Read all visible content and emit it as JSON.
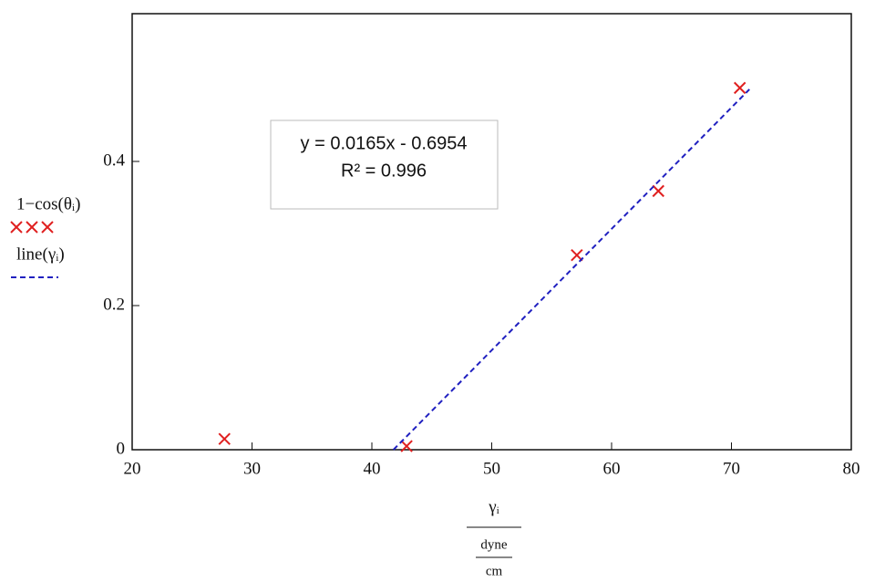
{
  "chart_data": {
    "type": "scatter",
    "xlabel": "γᵢ",
    "xlabel_unit_num": "dyne",
    "xlabel_unit_den": "cm",
    "annotation": [
      "y = 0.0165x - 0.6954",
      "R² = 0.996"
    ],
    "series": [
      {
        "name": "1−cos(θᵢ)",
        "color": "#e02020",
        "marker": "x",
        "x": [
          27.7,
          42.9,
          57.1,
          63.9,
          70.7
        ],
        "values": [
          0.015,
          0.005,
          0.27,
          0.359,
          0.502
        ]
      },
      {
        "name": "line(γᵢ)",
        "color": "#2020c0",
        "marker": "dashed-line",
        "x": [
          41.8,
          71.5
        ],
        "values": [
          0,
          0.5
        ]
      }
    ],
    "xlim": [
      20,
      80
    ],
    "xticks": [
      20,
      30,
      40,
      50,
      60,
      70,
      80
    ],
    "ylim": [
      0,
      0.605
    ],
    "yticks": [
      0,
      0.2,
      0.4
    ]
  }
}
